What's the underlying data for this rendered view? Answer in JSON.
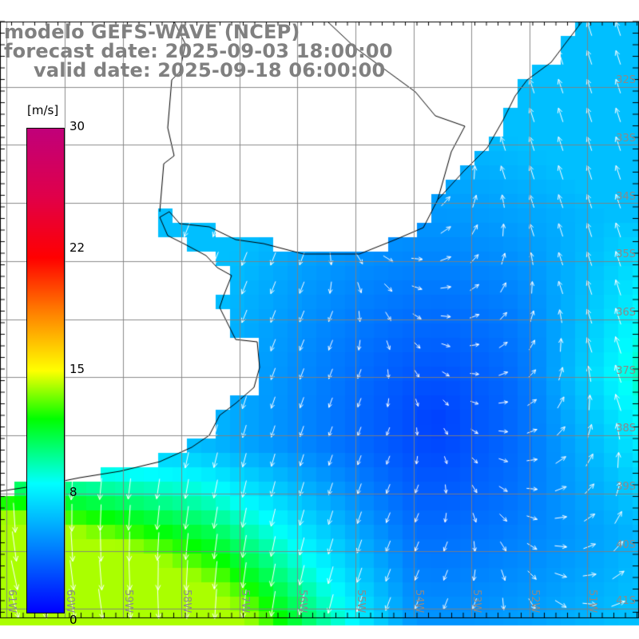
{
  "title": {
    "model": "modelo GEFS-WAVE (NCEP)",
    "forecast": "forecast date: 2025-09-03 18:00:00",
    "valid": "valid date: 2025-09-18 06:00:00"
  },
  "colorbar": {
    "unit": "[m/s]",
    "ticks": [
      "30",
      "22",
      "15",
      "8",
      "0"
    ],
    "colors": {
      "0": "#0000ff",
      "8": "#00ffff",
      "12": "#00ff00",
      "15": "#ffff00",
      "22": "#ff0000",
      "30": "#c0007a"
    }
  },
  "axes": {
    "lat_labels": [
      "32S",
      "33S",
      "34S",
      "35S",
      "36S",
      "37S",
      "38S",
      "39S",
      "40S",
      "41S"
    ],
    "lon_labels": [
      "61W",
      "60W",
      "59W",
      "58W",
      "57W",
      "56W",
      "55W",
      "54W",
      "53W",
      "52W",
      "51W"
    ]
  }
}
